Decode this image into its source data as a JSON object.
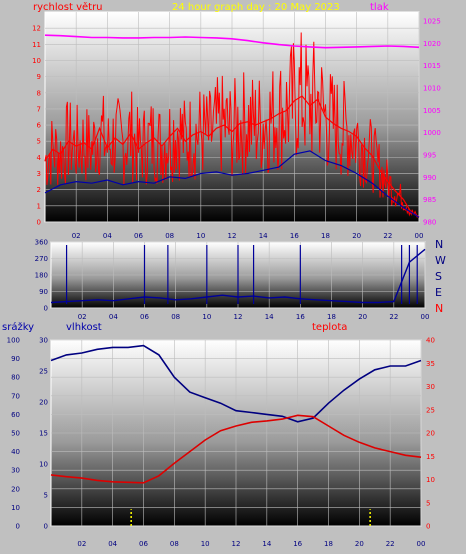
{
  "header": {
    "wind_label": "rychlost větru",
    "title": "24 hour graph day : 20 May 2023",
    "pressure_label": "tlak"
  },
  "bottom_header": {
    "rain_label": "srážky",
    "humidity_label": "vlhkost",
    "temp_label": "teplota"
  },
  "compass": [
    "N",
    "W",
    "S",
    "E",
    "N"
  ],
  "colors": {
    "panel_bg": "#c0c0c0",
    "wind": "#ff0000",
    "wind_avg": "#0000aa",
    "pressure": "#ff00ff",
    "humidity": "#000080",
    "temperature": "#dd0000",
    "rain": "#ffff00",
    "wind_dir": "#000099"
  },
  "chart_data": [
    {
      "type": "line",
      "title": "24 hour graph day : 20 May 2023",
      "x_ticks": [
        "02",
        "04",
        "06",
        "08",
        "10",
        "12",
        "14",
        "16",
        "18",
        "20",
        "22",
        "00"
      ],
      "xlim": [
        0,
        24
      ],
      "y_left_label": "rychlost větru",
      "y_left_ticks": [
        "0",
        "1",
        "2",
        "3",
        "4",
        "5",
        "6",
        "7",
        "8",
        "9",
        "10",
        "11",
        "12"
      ],
      "ylim_left": [
        0,
        13
      ],
      "y_right_label": "tlak",
      "y_right_ticks": [
        "980",
        "985",
        "990",
        "995",
        "1000",
        "1005",
        "1010",
        "1015",
        "1020",
        "1025"
      ],
      "ylim_right": [
        980,
        1027
      ],
      "series": [
        {
          "name": "rychlost větru",
          "axis": "left",
          "color": "#ff0000",
          "x": [
            0,
            0.5,
            1,
            1.5,
            2,
            2.5,
            3,
            3.5,
            4,
            4.5,
            5,
            5.5,
            6,
            6.5,
            7,
            7.5,
            8,
            8.5,
            9,
            9.5,
            10,
            10.5,
            11,
            11.5,
            12,
            12.5,
            13,
            13.5,
            14,
            14.5,
            15,
            15.5,
            16,
            16.5,
            17,
            17.5,
            18,
            18.5,
            19,
            19.5,
            20,
            20.5,
            21,
            21.5,
            22,
            22.5,
            23,
            23.5,
            24
          ],
          "y": [
            3.8,
            4.5,
            4.2,
            5.0,
            4.7,
            4.9,
            4.5,
            5.8,
            4.6,
            5.2,
            4.8,
            5.5,
            4.5,
            4.9,
            5.2,
            4.7,
            5.3,
            5.8,
            5.0,
            5.4,
            5.6,
            5.3,
            5.8,
            6.0,
            5.6,
            6.1,
            6.2,
            6.0,
            6.2,
            6.4,
            6.7,
            6.9,
            7.5,
            7.8,
            7.2,
            7.6,
            6.5,
            6.1,
            5.8,
            5.6,
            5.3,
            4.6,
            4.1,
            3.2,
            2.5,
            1.9,
            1.4,
            0.6,
            0.3
          ]
        },
        {
          "name": "",
          "axis": "left",
          "color": "#0000aa",
          "x": [
            0,
            1,
            2,
            3,
            4,
            5,
            6,
            7,
            8,
            9,
            10,
            11,
            12,
            13,
            14,
            15,
            16,
            17,
            18,
            19,
            20,
            21,
            22,
            23,
            24
          ],
          "y": [
            1.8,
            2.3,
            2.5,
            2.4,
            2.6,
            2.3,
            2.5,
            2.4,
            2.8,
            2.7,
            3.0,
            3.1,
            2.9,
            3.0,
            3.2,
            3.4,
            4.2,
            4.4,
            3.8,
            3.5,
            3.0,
            2.4,
            1.6,
            0.9,
            0.3
          ]
        },
        {
          "name": "tlak",
          "axis": "right",
          "color": "#ff00ff",
          "x": [
            0,
            1,
            2,
            3,
            4,
            5,
            6,
            7,
            8,
            9,
            10,
            11,
            12,
            13,
            14,
            15,
            16,
            17,
            18,
            19,
            20,
            21,
            22,
            23,
            24
          ],
          "y": [
            1021.8,
            1021.7,
            1021.5,
            1021.3,
            1021.3,
            1021.2,
            1021.2,
            1021.3,
            1021.3,
            1021.4,
            1021.3,
            1021.2,
            1021.0,
            1020.6,
            1020.1,
            1019.7,
            1019.4,
            1019.2,
            1019.0,
            1019.1,
            1019.2,
            1019.3,
            1019.4,
            1019.3,
            1019.1
          ]
        }
      ]
    },
    {
      "type": "line",
      "x_ticks": [
        "02",
        "04",
        "06",
        "08",
        "10",
        "12",
        "14",
        "16",
        "18",
        "20",
        "22",
        "00"
      ],
      "xlim": [
        0,
        24
      ],
      "y_ticks": [
        "0",
        "90",
        "180",
        "270",
        "360"
      ],
      "ylim": [
        0,
        360
      ],
      "series": [
        {
          "name": "",
          "color": "#000099",
          "x": [
            0,
            1,
            2,
            3,
            4,
            5,
            6,
            7,
            8,
            9,
            10,
            11,
            12,
            13,
            14,
            15,
            16,
            17,
            18,
            19,
            20,
            21,
            22,
            23,
            24
          ],
          "y": [
            30,
            35,
            40,
            45,
            40,
            50,
            60,
            55,
            45,
            50,
            60,
            70,
            60,
            65,
            55,
            60,
            50,
            45,
            40,
            35,
            30,
            30,
            35,
            250,
            320
          ]
        }
      ]
    },
    {
      "type": "line",
      "x_ticks": [
        "02",
        "04",
        "06",
        "08",
        "10",
        "12",
        "14",
        "16",
        "18",
        "20",
        "22",
        "00"
      ],
      "xlim": [
        0,
        24
      ],
      "y_rain_label": "srážky",
      "y_rain_ticks": [
        "0",
        "10",
        "20",
        "30",
        "40",
        "50",
        "60",
        "70",
        "80",
        "90",
        "100"
      ],
      "ylim_rain": [
        0,
        100
      ],
      "y_humidity_label": "vlhkost",
      "y_humidity_ticks": [
        "0",
        "5",
        "10",
        "15",
        "20",
        "25",
        "30"
      ],
      "ylim_humidity": [
        0,
        30
      ],
      "y_temp_label": "teplota",
      "y_temp_ticks": [
        "0",
        "5",
        "10",
        "15",
        "20",
        "25",
        "30",
        "35",
        "40"
      ],
      "ylim_temp": [
        0,
        40
      ],
      "series": [
        {
          "name": "vlhkost",
          "axis": "rain",
          "color": "#000080",
          "x": [
            0,
            1,
            2,
            3,
            4,
            5,
            6,
            7,
            8,
            9,
            10,
            11,
            12,
            13,
            14,
            15,
            16,
            17,
            18,
            19,
            20,
            21,
            22,
            23,
            24
          ],
          "y": [
            89,
            92,
            93,
            95,
            96,
            96,
            97,
            92,
            80,
            72,
            69,
            66,
            62,
            61,
            60,
            59,
            56,
            58,
            66,
            73,
            79,
            84,
            86,
            86,
            89
          ]
        },
        {
          "name": "teplota",
          "axis": "temp",
          "color": "#dd0000",
          "x": [
            0,
            1,
            2,
            3,
            4,
            5,
            6,
            7,
            8,
            9,
            10,
            11,
            12,
            13,
            14,
            15,
            16,
            17,
            18,
            19,
            20,
            21,
            22,
            23,
            24
          ],
          "y": [
            11.0,
            10.6,
            10.3,
            9.8,
            9.5,
            9.4,
            9.3,
            10.8,
            13.5,
            16.0,
            18.5,
            20.5,
            21.5,
            22.3,
            22.6,
            23.0,
            23.8,
            23.5,
            21.5,
            19.5,
            18.0,
            16.8,
            16.0,
            15.2,
            14.8
          ]
        },
        {
          "name": "srážky",
          "axis": "rain",
          "color": "#ffff00",
          "x": [
            5.2,
            20.7
          ],
          "y": [
            9,
            9
          ]
        }
      ]
    }
  ]
}
